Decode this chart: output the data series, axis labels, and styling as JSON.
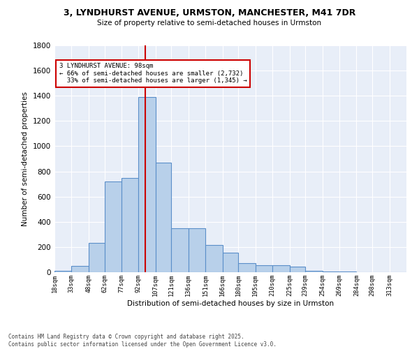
{
  "title_line1": "3, LYNDHURST AVENUE, URMSTON, MANCHESTER, M41 7DR",
  "title_line2": "Size of property relative to semi-detached houses in Urmston",
  "xlabel": "Distribution of semi-detached houses by size in Urmston",
  "ylabel": "Number of semi-detached properties",
  "footnote": "Contains HM Land Registry data © Crown copyright and database right 2025.\nContains public sector information licensed under the Open Government Licence v3.0.",
  "bins": [
    "18sqm",
    "33sqm",
    "48sqm",
    "62sqm",
    "77sqm",
    "92sqm",
    "107sqm",
    "121sqm",
    "136sqm",
    "151sqm",
    "166sqm",
    "180sqm",
    "195sqm",
    "210sqm",
    "225sqm",
    "239sqm",
    "254sqm",
    "269sqm",
    "284sqm",
    "298sqm",
    "313sqm"
  ],
  "bin_edges": [
    18,
    33,
    48,
    62,
    77,
    92,
    107,
    121,
    136,
    151,
    166,
    180,
    195,
    210,
    225,
    239,
    254,
    269,
    284,
    298,
    313,
    328
  ],
  "bar_heights": [
    10,
    50,
    230,
    720,
    750,
    1390,
    870,
    350,
    350,
    215,
    155,
    70,
    55,
    55,
    45,
    10,
    5,
    3,
    2,
    1,
    0
  ],
  "bar_color": "#b8d0ea",
  "bar_edge_color": "#5b8fc9",
  "property_size": 98,
  "pct_smaller": 66,
  "pct_larger": 33,
  "count_smaller": 2732,
  "count_larger": 1345,
  "vline_color": "#cc0000",
  "ylim": [
    0,
    1800
  ],
  "yticks": [
    0,
    200,
    400,
    600,
    800,
    1000,
    1200,
    1400,
    1600,
    1800
  ],
  "ax_facecolor": "#e8eef8",
  "grid_color": "#ffffff"
}
